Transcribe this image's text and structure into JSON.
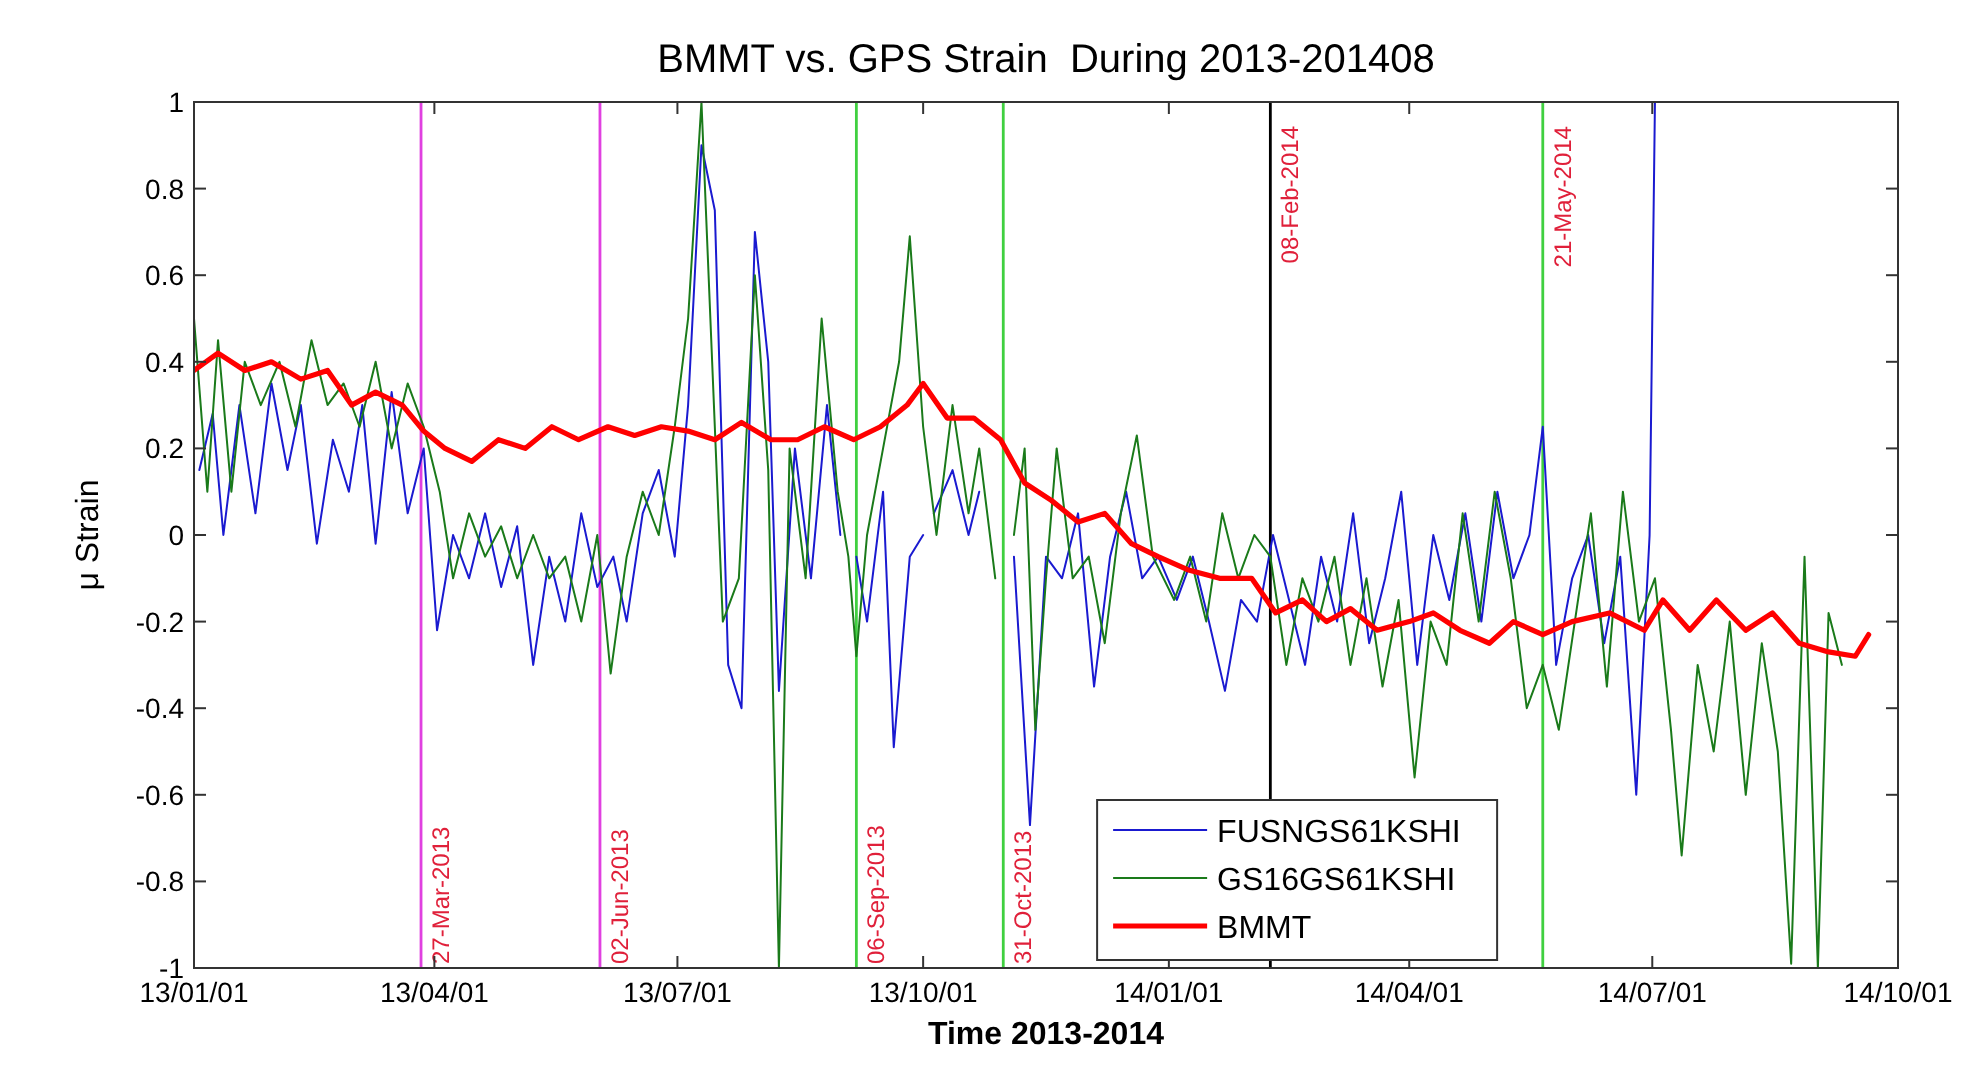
{
  "chart_data": {
    "type": "line",
    "title": "BMMT vs. GPS Strain  During 2013-201408",
    "xlabel": "Time 2013-2014",
    "ylabel": "μ Strain",
    "xlim": [
      "2013-01-01",
      "2014-10-01"
    ],
    "xticks": [
      {
        "value": "2013-01-01",
        "label": "13/01/01"
      },
      {
        "value": "2013-04-01",
        "label": "13/04/01"
      },
      {
        "value": "2013-07-01",
        "label": "13/07/01"
      },
      {
        "value": "2013-10-01",
        "label": "13/10/01"
      },
      {
        "value": "2014-01-01",
        "label": "14/01/01"
      },
      {
        "value": "2014-04-01",
        "label": "14/04/01"
      },
      {
        "value": "2014-07-01",
        "label": "14/07/01"
      },
      {
        "value": "2014-10-01",
        "label": "14/10/01"
      }
    ],
    "ylim": [
      -1,
      1
    ],
    "yticks": [
      -1,
      -0.8,
      -0.6,
      -0.4,
      -0.2,
      0,
      0.2,
      0.4,
      0.6,
      0.8,
      1
    ],
    "grid": false,
    "legend": "bottom right",
    "marker": "none",
    "line_style": "solid",
    "ref_lines": [
      {
        "axis": "x",
        "value": "2013-03-27",
        "label": "27-Mar-2013",
        "color": "#e040e0"
      },
      {
        "axis": "x",
        "value": "2013-06-02",
        "label": "02-Jun-2013",
        "color": "#e040e0"
      },
      {
        "axis": "x",
        "value": "2013-09-06",
        "label": "06-Sep-2013",
        "color": "#40d040"
      },
      {
        "axis": "x",
        "value": "2013-10-31",
        "label": "31-Oct-2013",
        "color": "#40d040"
      },
      {
        "axis": "x",
        "value": "2014-02-08",
        "label": "08-Feb-2014",
        "color": "#000000"
      },
      {
        "axis": "x",
        "value": "2014-05-21",
        "label": "21-May-2014",
        "color": "#40d040"
      }
    ],
    "series": [
      {
        "name": "FUSNGS61KSHI",
        "color": "#1a1ad0",
        "x": [
          "2013-01-03",
          "2013-01-08",
          "2013-01-12",
          "2013-01-18",
          "2013-01-24",
          "2013-01-30",
          "2013-02-05",
          "2013-02-10",
          "2013-02-16",
          "2013-02-22",
          "2013-02-28",
          "2013-03-05",
          "2013-03-10",
          "2013-03-16",
          "2013-03-22",
          "2013-03-28",
          "2013-04-02",
          "2013-04-08",
          "2013-04-14",
          "2013-04-20",
          "2013-04-26",
          "2013-05-02",
          "2013-05-08",
          "2013-05-14",
          "2013-05-20",
          "2013-05-26",
          "2013-06-01",
          "2013-06-07",
          "2013-06-12",
          "2013-06-18",
          "2013-06-24",
          "2013-06-30",
          "2013-07-05",
          "2013-07-10",
          "2013-07-15",
          "2013-07-20",
          "2013-07-25",
          "2013-07-30",
          "2013-08-04",
          "2013-08-08",
          "2013-08-14",
          "2013-08-20",
          "2013-08-26",
          "2013-08-31",
          "2013-09-03",
          "2013-09-06",
          "2013-09-10",
          "2013-09-16",
          "2013-09-20",
          "2013-09-26",
          "2013-10-01",
          "2013-10-03",
          "2013-10-05",
          "2013-10-12",
          "2013-10-18",
          "2013-10-22",
          "2013-10-28",
          "2013-11-04",
          "2013-11-10",
          "2013-11-16",
          "2013-11-22",
          "2013-11-28",
          "2013-12-04",
          "2013-12-10",
          "2013-12-16",
          "2013-12-22",
          "2013-12-28",
          "2014-01-04",
          "2014-01-10",
          "2014-01-16",
          "2014-01-22",
          "2014-01-28",
          "2014-02-03",
          "2014-02-09",
          "2014-02-15",
          "2014-02-21",
          "2014-02-27",
          "2014-03-05",
          "2014-03-11",
          "2014-03-17",
          "2014-03-23",
          "2014-03-29",
          "2014-04-04",
          "2014-04-10",
          "2014-04-16",
          "2014-04-22",
          "2014-04-28",
          "2014-05-04",
          "2014-05-10",
          "2014-05-16",
          "2014-05-21",
          "2014-05-26",
          "2014-06-01",
          "2014-06-07",
          "2014-06-13",
          "2014-06-19",
          "2014-06-25",
          "2014-06-30",
          "2014-07-02"
        ],
        "values": [
          0.15,
          0.28,
          0.0,
          0.3,
          0.05,
          0.35,
          0.15,
          0.3,
          -0.02,
          0.22,
          0.1,
          0.3,
          -0.02,
          0.33,
          0.05,
          0.2,
          -0.22,
          0.0,
          -0.1,
          0.05,
          -0.12,
          0.02,
          -0.3,
          -0.05,
          -0.2,
          0.05,
          -0.12,
          -0.05,
          -0.2,
          0.05,
          0.15,
          -0.05,
          0.3,
          0.9,
          0.75,
          -0.3,
          -0.4,
          0.7,
          0.4,
          -0.36,
          0.2,
          -0.1,
          0.3,
          0.0,
          null,
          -0.05,
          -0.2,
          0.1,
          -0.49,
          -0.05,
          0.0,
          null,
          0.05,
          0.15,
          0.0,
          0.1,
          null,
          -0.05,
          -0.67,
          -0.05,
          -0.1,
          0.05,
          -0.35,
          -0.05,
          0.1,
          -0.1,
          -0.05,
          -0.15,
          -0.05,
          -0.2,
          -0.36,
          -0.15,
          -0.2,
          0.0,
          -0.15,
          -0.3,
          -0.05,
          -0.2,
          0.05,
          -0.25,
          -0.1,
          0.1,
          -0.3,
          0.0,
          -0.15,
          0.05,
          -0.2,
          0.1,
          -0.1,
          0.0,
          0.25,
          -0.3,
          -0.1,
          0.0,
          -0.25,
          -0.05,
          -0.6,
          0.0,
          1.0
        ]
      },
      {
        "name": "GS16GS61KSHI",
        "color": "#1a7a1a",
        "x": [
          "2013-01-01",
          "2013-01-06",
          "2013-01-10",
          "2013-01-15",
          "2013-01-20",
          "2013-01-26",
          "2013-02-02",
          "2013-02-08",
          "2013-02-14",
          "2013-02-20",
          "2013-02-26",
          "2013-03-04",
          "2013-03-10",
          "2013-03-16",
          "2013-03-22",
          "2013-03-28",
          "2013-04-03",
          "2013-04-08",
          "2013-04-14",
          "2013-04-20",
          "2013-04-26",
          "2013-05-02",
          "2013-05-08",
          "2013-05-14",
          "2013-05-20",
          "2013-05-26",
          "2013-06-01",
          "2013-06-06",
          "2013-06-12",
          "2013-06-18",
          "2013-06-24",
          "2013-06-30",
          "2013-07-05",
          "2013-07-10",
          "2013-07-14",
          "2013-07-18",
          "2013-07-24",
          "2013-07-30",
          "2013-08-04",
          "2013-08-08",
          "2013-08-12",
          "2013-08-18",
          "2013-08-24",
          "2013-08-30",
          "2013-09-03",
          "2013-09-06",
          "2013-09-10",
          "2013-09-16",
          "2013-09-22",
          "2013-09-26",
          "2013-10-01",
          "2013-10-06",
          "2013-10-12",
          "2013-10-18",
          "2013-10-22",
          "2013-10-28",
          "2013-11-01",
          "2013-11-04",
          "2013-11-08",
          "2013-11-12",
          "2013-11-16",
          "2013-11-20",
          "2013-11-26",
          "2013-12-02",
          "2013-12-08",
          "2013-12-14",
          "2013-12-20",
          "2013-12-26",
          "2014-01-03",
          "2014-01-09",
          "2014-01-15",
          "2014-01-21",
          "2014-01-27",
          "2014-02-02",
          "2014-02-08",
          "2014-02-14",
          "2014-02-20",
          "2014-02-26",
          "2014-03-04",
          "2014-03-10",
          "2014-03-16",
          "2014-03-22",
          "2014-03-28",
          "2014-04-03",
          "2014-04-09",
          "2014-04-15",
          "2014-04-21",
          "2014-04-27",
          "2014-05-03",
          "2014-05-09",
          "2014-05-15",
          "2014-05-21",
          "2014-05-27",
          "2014-06-02",
          "2014-06-08",
          "2014-06-14",
          "2014-06-20",
          "2014-06-26",
          "2014-07-02",
          "2014-07-08",
          "2014-07-12",
          "2014-07-18",
          "2014-07-24",
          "2014-07-30",
          "2014-08-05",
          "2014-08-11",
          "2014-08-17",
          "2014-08-22",
          "2014-08-27",
          "2014-09-01",
          "2014-09-05",
          "2014-09-10"
        ],
        "values": [
          0.5,
          0.1,
          0.45,
          0.1,
          0.4,
          0.3,
          0.4,
          0.25,
          0.45,
          0.3,
          0.35,
          0.25,
          0.4,
          0.2,
          0.35,
          0.25,
          0.1,
          -0.1,
          0.05,
          -0.05,
          0.02,
          -0.1,
          0.0,
          -0.1,
          -0.05,
          -0.2,
          0.0,
          -0.32,
          -0.05,
          0.1,
          0.0,
          0.25,
          0.5,
          1.0,
          0.4,
          -0.2,
          -0.1,
          0.6,
          0.15,
          -1.0,
          0.2,
          -0.1,
          0.5,
          0.1,
          -0.05,
          -0.28,
          0.0,
          0.2,
          0.4,
          0.69,
          0.25,
          0.0,
          0.3,
          0.05,
          0.2,
          -0.1,
          null,
          0.0,
          0.2,
          -0.45,
          -0.1,
          0.2,
          -0.1,
          -0.05,
          -0.25,
          0.05,
          0.23,
          -0.05,
          -0.15,
          -0.05,
          -0.2,
          0.05,
          -0.1,
          0.0,
          -0.05,
          -0.3,
          -0.1,
          -0.2,
          -0.05,
          -0.3,
          -0.1,
          -0.35,
          -0.15,
          -0.56,
          -0.2,
          -0.3,
          0.05,
          -0.2,
          0.1,
          -0.1,
          -0.4,
          -0.3,
          -0.45,
          -0.2,
          0.05,
          -0.35,
          0.1,
          -0.2,
          -0.1,
          -0.45,
          -0.74,
          -0.3,
          -0.5,
          -0.2,
          -0.6,
          -0.25,
          -0.5,
          -0.99,
          -0.05,
          -1.0,
          -0.18,
          -0.3
        ]
      },
      {
        "name": "BMMT",
        "color": "#ff0000",
        "x": [
          "2013-01-01",
          "2013-01-10",
          "2013-01-20",
          "2013-01-30",
          "2013-02-10",
          "2013-02-20",
          "2013-03-01",
          "2013-03-10",
          "2013-03-20",
          "2013-03-28",
          "2013-04-05",
          "2013-04-15",
          "2013-04-25",
          "2013-05-05",
          "2013-05-15",
          "2013-05-25",
          "2013-06-05",
          "2013-06-15",
          "2013-06-25",
          "2013-07-05",
          "2013-07-15",
          "2013-07-25",
          "2013-08-05",
          "2013-08-15",
          "2013-08-25",
          "2013-09-05",
          "2013-09-15",
          "2013-09-25",
          "2013-10-01",
          "2013-10-10",
          "2013-10-20",
          "2013-10-30",
          "2013-11-08",
          "2013-11-18",
          "2013-11-28",
          "2013-12-08",
          "2013-12-18",
          "2013-12-28",
          "2014-01-08",
          "2014-01-20",
          "2014-02-01",
          "2014-02-10",
          "2014-02-20",
          "2014-03-01",
          "2014-03-10",
          "2014-03-20",
          "2014-04-01",
          "2014-04-10",
          "2014-04-20",
          "2014-05-01",
          "2014-05-10",
          "2014-05-21",
          "2014-06-01",
          "2014-06-15",
          "2014-06-28",
          "2014-07-05",
          "2014-07-15",
          "2014-07-25",
          "2014-08-05",
          "2014-08-15",
          "2014-08-25",
          "2014-09-05",
          "2014-09-15",
          "2014-09-20"
        ],
        "values": [
          0.38,
          0.42,
          0.38,
          0.4,
          0.36,
          0.38,
          0.3,
          0.33,
          0.3,
          0.24,
          0.2,
          0.17,
          0.22,
          0.2,
          0.25,
          0.22,
          0.25,
          0.23,
          0.25,
          0.24,
          0.22,
          0.26,
          0.22,
          0.22,
          0.25,
          0.22,
          0.25,
          0.3,
          0.35,
          0.27,
          0.27,
          0.22,
          0.12,
          0.08,
          0.03,
          0.05,
          -0.02,
          -0.05,
          -0.08,
          -0.1,
          -0.1,
          -0.18,
          -0.15,
          -0.2,
          -0.17,
          -0.22,
          -0.2,
          -0.18,
          -0.22,
          -0.25,
          -0.2,
          -0.23,
          -0.2,
          -0.18,
          -0.22,
          -0.15,
          -0.22,
          -0.15,
          -0.22,
          -0.18,
          -0.25,
          -0.27,
          -0.28,
          -0.23
        ]
      }
    ]
  }
}
